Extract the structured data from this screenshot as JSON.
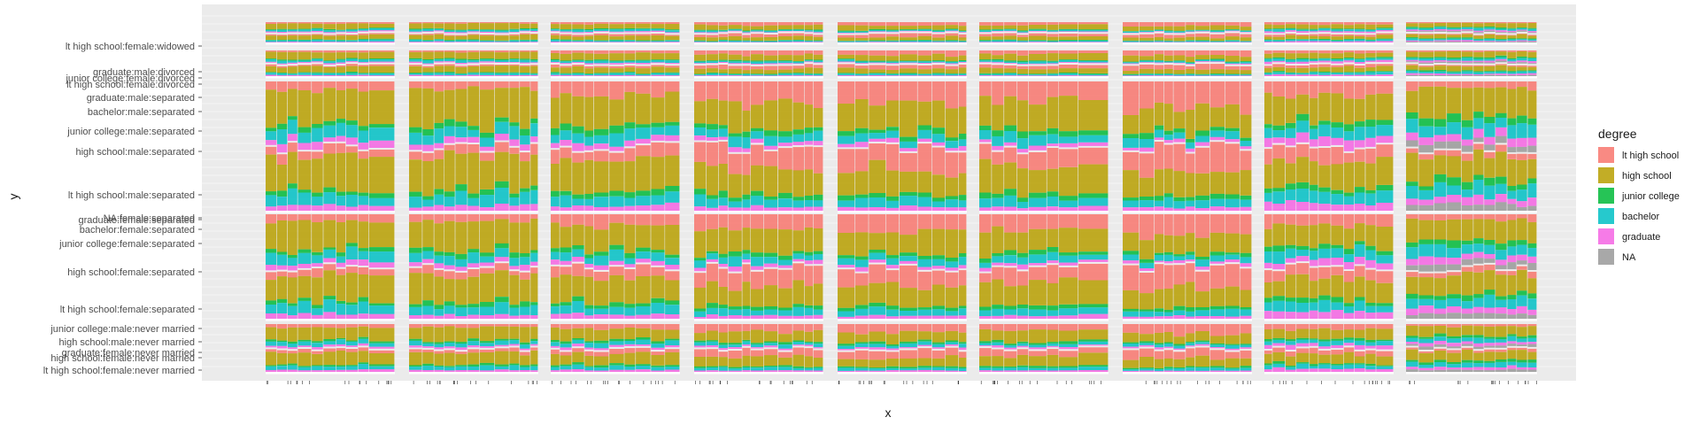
{
  "chart_data": {
    "type": "mosaic",
    "xlabel": "x",
    "ylabel": "y",
    "legend": {
      "title": "degree",
      "position": "right",
      "entries": [
        {
          "label": "lt high school",
          "color": "#F8766D"
        },
        {
          "label": "high school",
          "color": "#B79F00"
        },
        {
          "label": "junior college",
          "color": "#00BA38"
        },
        {
          "label": "bachelor",
          "color": "#00BFC4"
        },
        {
          "label": "graduate",
          "color": "#F564E3"
        },
        {
          "label": "NA",
          "color": "#999999"
        }
      ]
    },
    "y_tick_labels": [
      "lt high school:female:widowed",
      "graduate:male:divorced",
      "junior college:female:divorced",
      "lt high school:female:divorced",
      "graduate:male:separated",
      "bachelor:male:separated",
      "junior college:male:separated",
      "high school:male:separated",
      "lt high school:male:separated",
      "graduate:female:separated",
      "NA:female:separated",
      "bachelor:female:separated",
      "junior college:female:separated",
      "high school:female:separated",
      "lt high school:female:separated",
      "junior college:male:never married",
      "high school:male:never married",
      "graduate:female:never married",
      "high school:female:never married",
      "lt high school:female:never married"
    ],
    "grid": true,
    "panels": [
      {
        "shares": {
          "lt high school": 0.14,
          "high school": 0.52,
          "junior college": 0.07,
          "bachelor": 0.18,
          "graduate": 0.09,
          "NA": 0.0
        }
      },
      {
        "shares": {
          "lt high school": 0.12,
          "high school": 0.55,
          "junior college": 0.08,
          "bachelor": 0.17,
          "graduate": 0.08,
          "NA": 0.0
        }
      },
      {
        "shares": {
          "lt high school": 0.2,
          "high school": 0.48,
          "junior college": 0.08,
          "bachelor": 0.16,
          "graduate": 0.08,
          "NA": 0.0
        }
      },
      {
        "shares": {
          "lt high school": 0.32,
          "high school": 0.42,
          "junior college": 0.07,
          "bachelor": 0.13,
          "graduate": 0.06,
          "NA": 0.0
        }
      },
      {
        "shares": {
          "lt high school": 0.35,
          "high school": 0.4,
          "junior college": 0.07,
          "bachelor": 0.12,
          "graduate": 0.06,
          "NA": 0.0
        }
      },
      {
        "shares": {
          "lt high school": 0.28,
          "high school": 0.45,
          "junior college": 0.08,
          "bachelor": 0.13,
          "graduate": 0.06,
          "NA": 0.0
        }
      },
      {
        "shares": {
          "lt high school": 0.4,
          "high school": 0.38,
          "junior college": 0.06,
          "bachelor": 0.11,
          "graduate": 0.05,
          "NA": 0.0
        }
      },
      {
        "shares": {
          "lt high school": 0.22,
          "high school": 0.4,
          "junior college": 0.08,
          "bachelor": 0.17,
          "graduate": 0.13,
          "NA": 0.0
        }
      },
      {
        "shares": {
          "lt high school": 0.1,
          "high school": 0.4,
          "junior college": 0.1,
          "bachelor": 0.18,
          "graduate": 0.12,
          "NA": 0.1
        }
      }
    ]
  }
}
